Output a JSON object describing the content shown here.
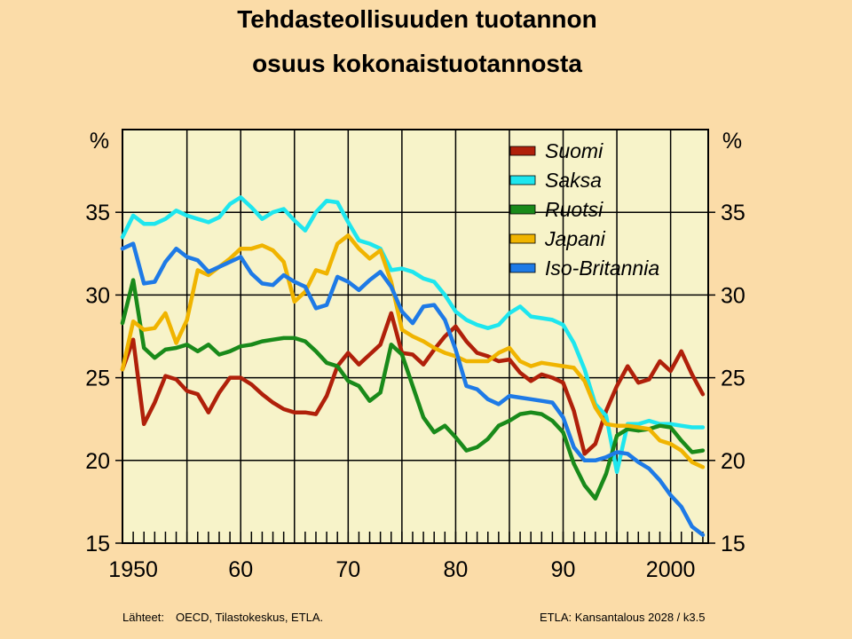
{
  "title_line1": "Tehdasteollisuuden  tuotannon",
  "title_line2": "osuus  kokonaistuotannosta",
  "footer": {
    "sources_label": "Lähteet:",
    "sources": "OECD, Tilastokeskus, ETLA.",
    "credit": "ETLA: Kansantalous 2028 / k3.5"
  },
  "chart_data": {
    "type": "line",
    "ylabel_left": "%",
    "ylabel_right": "%",
    "xlim": [
      1949,
      2003.5
    ],
    "ylim": [
      15,
      40
    ],
    "y_ticks": [
      15,
      20,
      25,
      30,
      35
    ],
    "x_ticks": [
      1950,
      1960,
      1970,
      1980,
      1990,
      2000
    ],
    "x_tick_labels": [
      "1950",
      "60",
      "70",
      "80",
      "90",
      "2000"
    ],
    "grid": true,
    "legend_position": "top-right",
    "x": [
      1949,
      1950,
      1951,
      1952,
      1953,
      1954,
      1955,
      1956,
      1957,
      1958,
      1959,
      1960,
      1961,
      1962,
      1963,
      1964,
      1965,
      1966,
      1967,
      1968,
      1969,
      1970,
      1971,
      1972,
      1973,
      1974,
      1975,
      1976,
      1977,
      1978,
      1979,
      1980,
      1981,
      1982,
      1983,
      1984,
      1985,
      1986,
      1987,
      1988,
      1989,
      1990,
      1991,
      1992,
      1993,
      1994,
      1995,
      1996,
      1997,
      1998,
      1999,
      2000,
      2001,
      2002,
      2003
    ],
    "series": [
      {
        "name": "Suomi",
        "color": "#b0200a",
        "values": [
          25.5,
          27.3,
          22.2,
          23.5,
          25.1,
          24.9,
          24.2,
          24.0,
          22.9,
          24.1,
          25.0,
          25.0,
          24.6,
          24.0,
          23.5,
          23.1,
          22.9,
          22.9,
          22.8,
          23.9,
          25.7,
          26.5,
          25.8,
          26.4,
          27.0,
          28.9,
          26.5,
          26.4,
          25.8,
          26.7,
          27.5,
          28.1,
          27.2,
          26.5,
          26.3,
          26.0,
          26.1,
          25.3,
          24.8,
          25.2,
          25.0,
          24.7,
          23.0,
          20.4,
          21.0,
          23.0,
          24.5,
          25.7,
          24.7,
          24.9,
          26.0,
          25.4,
          26.6,
          25.2,
          24.0
        ]
      },
      {
        "name": "Saksa",
        "color": "#1ee6ee",
        "values": [
          33.5,
          34.8,
          34.3,
          34.3,
          34.6,
          35.1,
          34.8,
          34.6,
          34.4,
          34.7,
          35.5,
          35.9,
          35.3,
          34.6,
          35.0,
          35.2,
          34.5,
          33.9,
          35.0,
          35.7,
          35.6,
          34.4,
          33.3,
          33.1,
          32.8,
          31.5,
          31.6,
          31.4,
          31.0,
          30.8,
          30.0,
          29.0,
          28.5,
          28.2,
          28.0,
          28.2,
          28.9,
          29.3,
          28.7,
          28.6,
          28.5,
          28.2,
          27.1,
          25.5,
          23.4,
          22.7,
          19.3,
          22.2,
          22.2,
          22.4,
          22.2,
          22.2,
          22.1,
          22.0,
          22.0
        ]
      },
      {
        "name": "Ruotsi",
        "color": "#198a1a",
        "values": [
          28.3,
          30.9,
          26.8,
          26.2,
          26.7,
          26.8,
          27.0,
          26.6,
          27.0,
          26.4,
          26.6,
          26.9,
          27.0,
          27.2,
          27.3,
          27.4,
          27.4,
          27.2,
          26.6,
          25.9,
          25.7,
          24.8,
          24.5,
          23.6,
          24.1,
          27.0,
          26.4,
          24.5,
          22.6,
          21.7,
          22.1,
          21.4,
          20.6,
          20.8,
          21.3,
          22.1,
          22.4,
          22.8,
          22.9,
          22.8,
          22.4,
          21.7,
          19.8,
          18.5,
          17.7,
          19.2,
          21.5,
          21.9,
          21.8,
          21.9,
          22.1,
          22.0,
          21.2,
          20.5,
          20.6
        ]
      },
      {
        "name": "Japani",
        "color": "#f0b400",
        "values": [
          25.5,
          28.4,
          27.9,
          28.0,
          28.9,
          27.1,
          28.5,
          31.5,
          31.2,
          31.7,
          32.2,
          32.8,
          32.8,
          33.0,
          32.7,
          32.0,
          29.6,
          30.2,
          31.5,
          31.3,
          33.1,
          33.6,
          32.8,
          32.2,
          32.7,
          30.8,
          27.9,
          27.5,
          27.2,
          26.8,
          26.5,
          26.3,
          26.0,
          26.0,
          26.0,
          26.5,
          26.8,
          26.0,
          25.7,
          25.9,
          25.8,
          25.7,
          25.6,
          24.8,
          23.2,
          22.2,
          22.1,
          22.1,
          22.0,
          21.9,
          21.2,
          21.0,
          20.6,
          19.9,
          19.6
        ]
      },
      {
        "name": "Iso-Britannia",
        "color": "#1e7ae6",
        "values": [
          32.8,
          33.1,
          30.7,
          30.8,
          32.0,
          32.8,
          32.3,
          32.1,
          31.4,
          31.7,
          32.0,
          32.3,
          31.3,
          30.7,
          30.6,
          31.2,
          30.8,
          30.5,
          29.2,
          29.4,
          31.1,
          30.8,
          30.3,
          30.9,
          31.4,
          30.5,
          29.0,
          28.3,
          29.3,
          29.4,
          28.5,
          26.7,
          24.5,
          24.3,
          23.7,
          23.4,
          23.9,
          23.8,
          23.7,
          23.6,
          23.5,
          22.6,
          20.8,
          20.0,
          20.0,
          20.2,
          20.5,
          20.4,
          19.9,
          19.5,
          18.8,
          17.9,
          17.2,
          16.0,
          15.5
        ]
      }
    ]
  }
}
